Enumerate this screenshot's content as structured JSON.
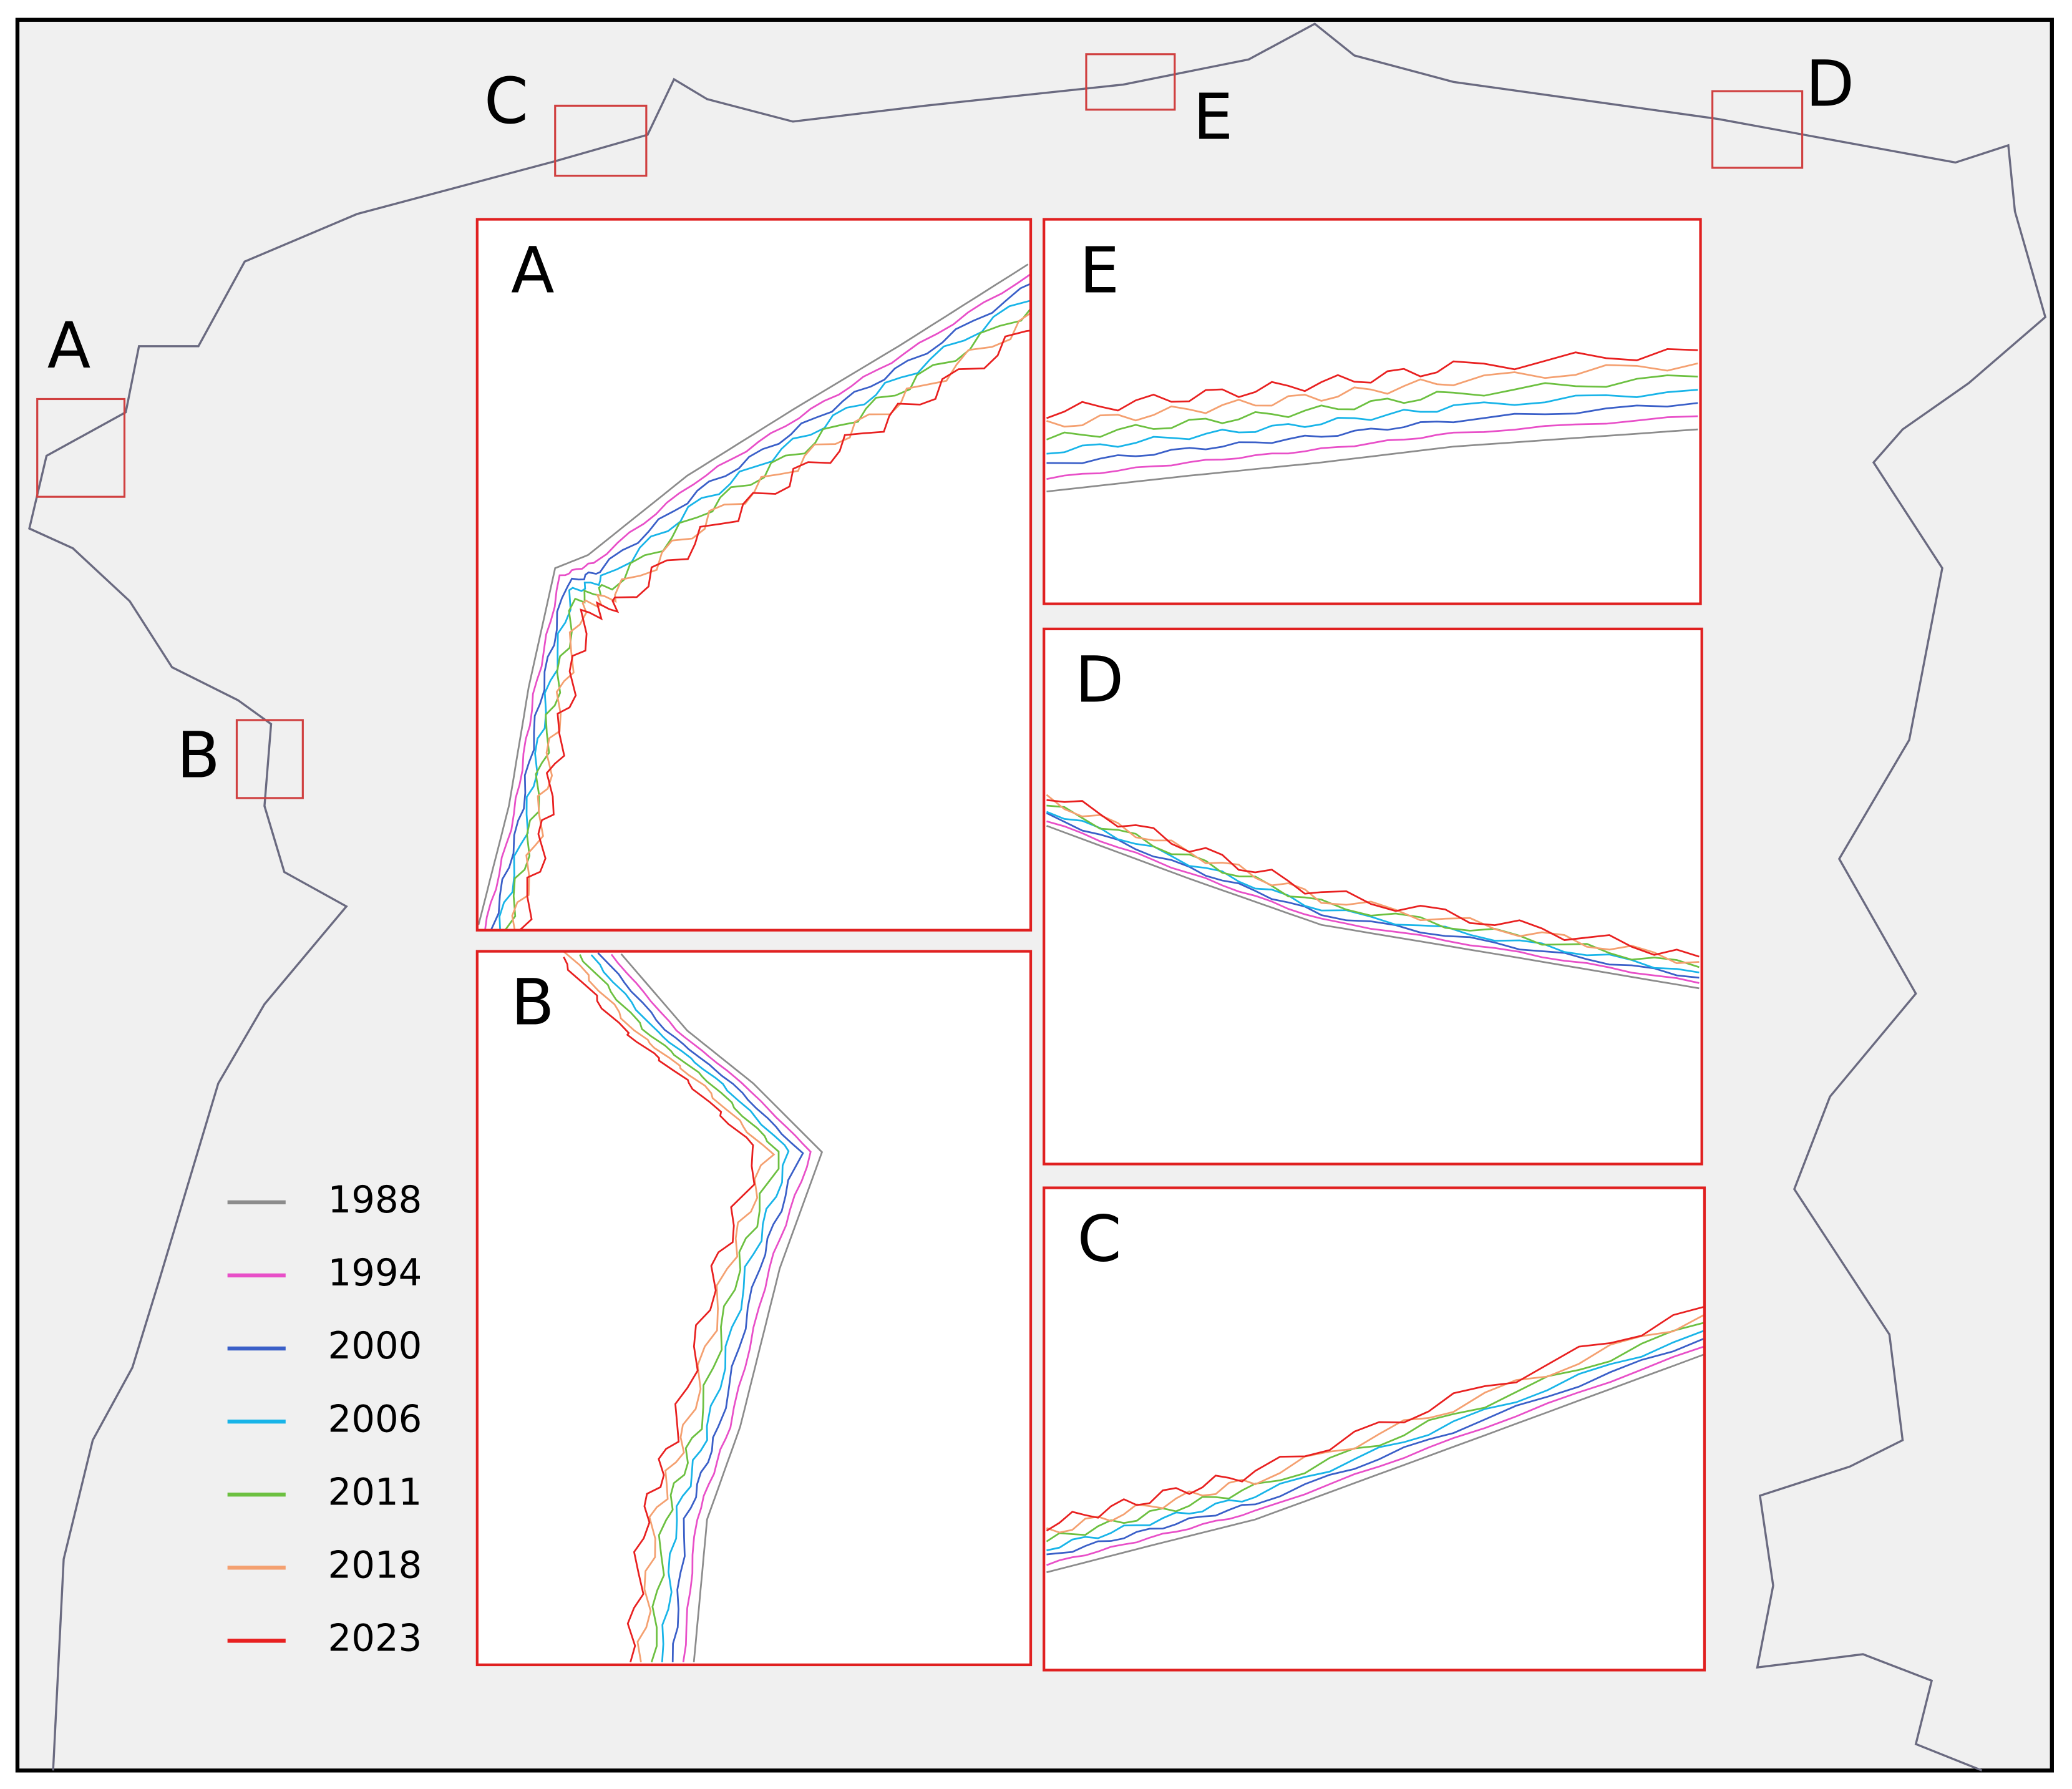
{
  "map_labels": [
    "A",
    "B",
    "C",
    "D",
    "E"
  ],
  "insets": [
    {
      "label": "A"
    },
    {
      "label": "B"
    },
    {
      "label": "E"
    },
    {
      "label": "D"
    },
    {
      "label": "C"
    }
  ],
  "legend": [
    {
      "year": "1988",
      "color": "#8c8c8c"
    },
    {
      "year": "1994",
      "color": "#e84fc8"
    },
    {
      "year": "2000",
      "color": "#3a5fc8"
    },
    {
      "year": "2006",
      "color": "#18b4e8"
    },
    {
      "year": "2011",
      "color": "#6cc040"
    },
    {
      "year": "2018",
      "color": "#f4a070"
    },
    {
      "year": "2023",
      "color": "#e82020"
    }
  ]
}
